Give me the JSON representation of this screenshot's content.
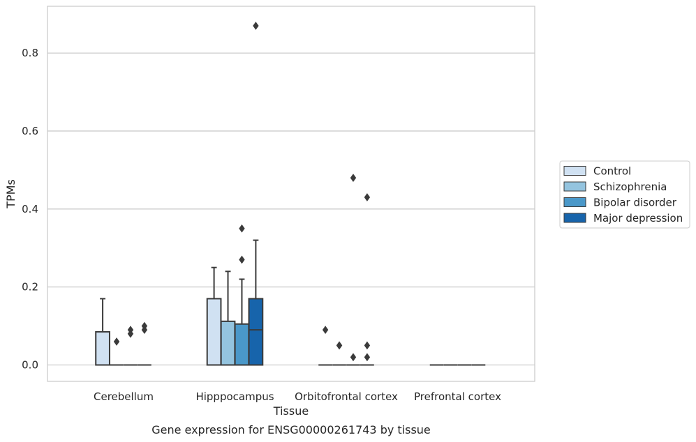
{
  "chart_data": {
    "type": "box",
    "xlabel": "Tissue",
    "ylabel": "TPMs",
    "caption": "Gene expression for ENSG00000261743 by tissue",
    "ylim": [
      -0.042,
      0.92
    ],
    "yticks": [
      "0.0",
      "0.2",
      "0.4",
      "0.6",
      "0.8"
    ],
    "grid": "horizontal",
    "legend_position": "right",
    "categories": [
      "Cerebellum",
      "Hipppocampus",
      "Orbitofrontal cortex",
      "Prefrontal cortex"
    ],
    "series": [
      {
        "name": "Control",
        "color": "#d0e1f2",
        "boxes": [
          {
            "q1": 0.0,
            "median": 0.0,
            "q3": 0.085,
            "whisker_low": 0.0,
            "whisker_high": 0.17,
            "outliers": []
          },
          {
            "q1": 0.0,
            "median": 0.0,
            "q3": 0.17,
            "whisker_low": 0.0,
            "whisker_high": 0.25,
            "outliers": []
          },
          {
            "q1": 0.0,
            "median": 0.0,
            "q3": 0.0,
            "whisker_low": 0.0,
            "whisker_high": 0.0,
            "outliers": [
              0.09
            ]
          },
          {
            "q1": 0.0,
            "median": 0.0,
            "q3": 0.0,
            "whisker_low": 0.0,
            "whisker_high": 0.0,
            "outliers": []
          }
        ]
      },
      {
        "name": "Schizophrenia",
        "color": "#94c4df",
        "boxes": [
          {
            "q1": 0.0,
            "median": 0.0,
            "q3": 0.0,
            "whisker_low": 0.0,
            "whisker_high": 0.0,
            "outliers": [
              0.06
            ]
          },
          {
            "q1": 0.0,
            "median": 0.0,
            "q3": 0.112,
            "whisker_low": 0.0,
            "whisker_high": 0.24,
            "outliers": []
          },
          {
            "q1": 0.0,
            "median": 0.0,
            "q3": 0.0,
            "whisker_low": 0.0,
            "whisker_high": 0.0,
            "outliers": [
              0.05,
              0.05
            ]
          },
          {
            "q1": 0.0,
            "median": 0.0,
            "q3": 0.0,
            "whisker_low": 0.0,
            "whisker_high": 0.0,
            "outliers": []
          }
        ]
      },
      {
        "name": "Bipolar disorder",
        "color": "#4a98c9",
        "boxes": [
          {
            "q1": 0.0,
            "median": 0.0,
            "q3": 0.0,
            "whisker_low": 0.0,
            "whisker_high": 0.0,
            "outliers": [
              0.08,
              0.09
            ]
          },
          {
            "q1": 0.0,
            "median": 0.0,
            "q3": 0.105,
            "whisker_low": 0.0,
            "whisker_high": 0.22,
            "outliers": [
              0.27,
              0.35
            ]
          },
          {
            "q1": 0.0,
            "median": 0.0,
            "q3": 0.0,
            "whisker_low": 0.0,
            "whisker_high": 0.0,
            "outliers": [
              0.02,
              0.48
            ]
          },
          {
            "q1": 0.0,
            "median": 0.0,
            "q3": 0.0,
            "whisker_low": 0.0,
            "whisker_high": 0.0,
            "outliers": []
          }
        ]
      },
      {
        "name": "Major depression",
        "color": "#1764ab",
        "boxes": [
          {
            "q1": 0.0,
            "median": 0.0,
            "q3": 0.0,
            "whisker_low": 0.0,
            "whisker_high": 0.0,
            "outliers": [
              0.09,
              0.1
            ]
          },
          {
            "q1": 0.0,
            "median": 0.09,
            "q3": 0.17,
            "whisker_low": 0.0,
            "whisker_high": 0.32,
            "outliers": [
              0.87
            ]
          },
          {
            "q1": 0.0,
            "median": 0.0,
            "q3": 0.0,
            "whisker_low": 0.0,
            "whisker_high": 0.0,
            "outliers": [
              0.02,
              0.05,
              0.43
            ]
          },
          {
            "q1": 0.0,
            "median": 0.0,
            "q3": 0.0,
            "whisker_low": 0.0,
            "whisker_high": 0.0,
            "outliers": []
          }
        ]
      }
    ]
  }
}
